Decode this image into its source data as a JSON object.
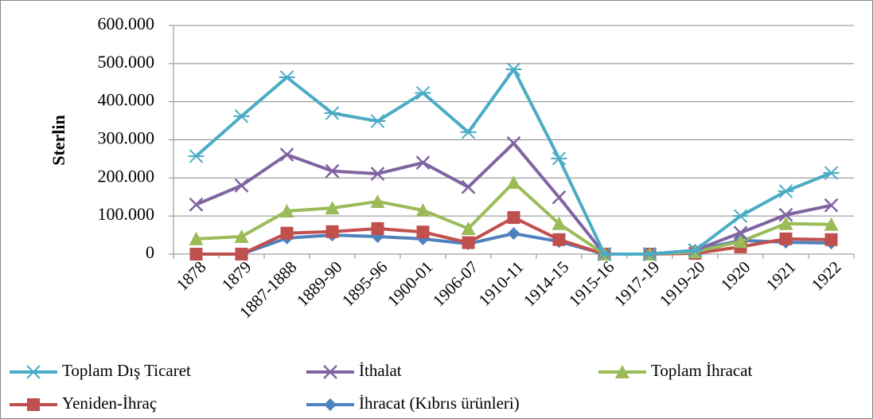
{
  "chart_data": {
    "type": "line",
    "y_label": "Sterlin",
    "categories": [
      "1878",
      "1879",
      "1887-1888",
      "1889-90",
      "1895-96",
      "1900-01",
      "1906-07",
      "1910-11",
      "1914-15",
      "1915-16",
      "1917-19",
      "1919-20",
      "1920",
      "1921",
      "1922"
    ],
    "ylim": [
      0,
      600000
    ],
    "yticks": [
      0,
      {
        "value": 100000,
        "label": "100.000"
      },
      {
        "value": 200000,
        "label": "200.000"
      },
      {
        "value": 300000,
        "label": "300.000"
      },
      {
        "value": 400000,
        "label": "400.000"
      },
      {
        "value": 500000,
        "label": "500.000"
      },
      {
        "value": 600000,
        "label": "600.000"
      }
    ],
    "grid": true,
    "legend": "bottom",
    "series": [
      {
        "name": "Toplam Dış Ticaret",
        "color": "#4bacc6",
        "marker": "star",
        "values": [
          257000,
          362000,
          464000,
          370000,
          349000,
          423000,
          320000,
          485000,
          251000,
          0,
          0,
          10000,
          100000,
          165000,
          213000
        ]
      },
      {
        "name": "İthalat",
        "color": "#8064a2",
        "marker": "x",
        "values": [
          130000,
          180000,
          261000,
          218000,
          211000,
          240000,
          176000,
          291000,
          149000,
          0,
          0,
          10000,
          56000,
          103000,
          128000
        ]
      },
      {
        "name": "Toplam İhracat",
        "color": "#9bbb59",
        "marker": "triangle",
        "values": [
          40000,
          46000,
          113000,
          121000,
          138000,
          115000,
          67000,
          188000,
          80000,
          0,
          0,
          6000,
          33000,
          80000,
          78000
        ]
      },
      {
        "name": "Yeniden-İhraç",
        "color": "#c0504d",
        "marker": "square",
        "values": [
          0,
          0,
          55000,
          59000,
          67000,
          58000,
          30000,
          96000,
          38000,
          0,
          0,
          2000,
          19000,
          40000,
          38000
        ]
      },
      {
        "name": "İhracat (Kıbrıs ürünleri)",
        "color": "#4f81bd",
        "marker": "diamond",
        "values": [
          0,
          0,
          42000,
          50000,
          46000,
          40000,
          27000,
          54000,
          33000,
          0,
          0,
          10000,
          36000,
          31000,
          29000
        ]
      }
    ]
  }
}
